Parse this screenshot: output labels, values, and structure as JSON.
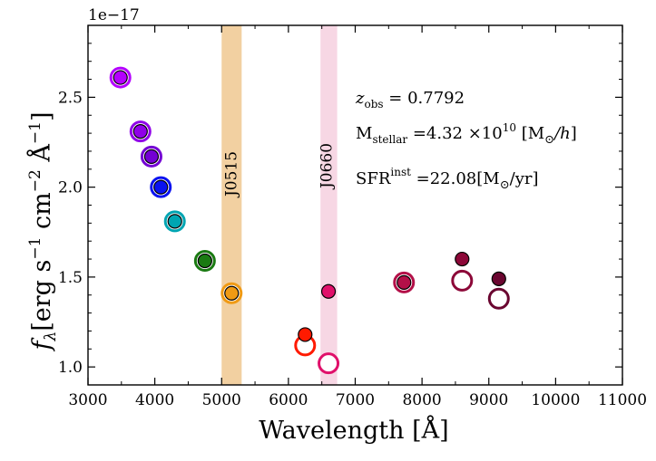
{
  "chart_data": {
    "type": "scatter",
    "title": "",
    "xlabel": "Wavelength  [Å]",
    "ylabel_parts": {
      "f": "f",
      "sub": "λ",
      "units": "[erg  s",
      "s_exp": "−1",
      "cm": "  cm",
      "cm_exp": "−2",
      "ang": "  Å",
      "ang_exp": "−1",
      "close": "]"
    },
    "y_offset_text": "1e−17",
    "xlim": [
      3000,
      11000
    ],
    "ylim": [
      0.9,
      2.9
    ],
    "xticks": [
      3000,
      4000,
      5000,
      6000,
      7000,
      8000,
      9000,
      10000,
      11000
    ],
    "yticks": [
      1.0,
      1.5,
      2.0,
      2.5
    ],
    "ytick_labels": [
      "1.0",
      "1.5",
      "2.0",
      "2.5"
    ],
    "bands": [
      {
        "name": "J0515",
        "x_range": [
          5000,
          5300
        ],
        "color": "#f0c890"
      },
      {
        "name": "J0660",
        "x_range": [
          6480,
          6730
        ],
        "color": "#f6d0df"
      }
    ],
    "series": [
      {
        "name": "observed_filled",
        "points": [
          {
            "x": 3485,
            "y": 2.61,
            "color": "#b400ff"
          },
          {
            "x": 3785,
            "y": 2.31,
            "color": "#9000e8"
          },
          {
            "x": 3950,
            "y": 2.17,
            "color": "#7400d4"
          },
          {
            "x": 4090,
            "y": 2.0,
            "color": "#0a12f0"
          },
          {
            "x": 4300,
            "y": 1.81,
            "color": "#00a5b2"
          },
          {
            "x": 4750,
            "y": 1.59,
            "color": "#1a7a12"
          },
          {
            "x": 5150,
            "y": 1.41,
            "color": "#f09a14"
          },
          {
            "x": 6250,
            "y": 1.18,
            "color": "#ff1a00"
          },
          {
            "x": 6600,
            "y": 1.42,
            "color": "#e0106a"
          },
          {
            "x": 7730,
            "y": 1.47,
            "color": "#b31048"
          },
          {
            "x": 8600,
            "y": 1.6,
            "color": "#8c0838"
          },
          {
            "x": 9150,
            "y": 1.49,
            "color": "#6a0630"
          }
        ]
      },
      {
        "name": "model_open",
        "points": [
          {
            "x": 3485,
            "y": 2.61,
            "color": "#b400ff"
          },
          {
            "x": 3785,
            "y": 2.31,
            "color": "#9000e8"
          },
          {
            "x": 3950,
            "y": 2.17,
            "color": "#7400d4"
          },
          {
            "x": 4090,
            "y": 2.0,
            "color": "#0a12f0"
          },
          {
            "x": 4300,
            "y": 1.81,
            "color": "#00a5b2"
          },
          {
            "x": 4750,
            "y": 1.59,
            "color": "#1a7a12"
          },
          {
            "x": 5150,
            "y": 1.41,
            "color": "#f09a14"
          },
          {
            "x": 6250,
            "y": 1.12,
            "color": "#ff1a00"
          },
          {
            "x": 6600,
            "y": 1.02,
            "color": "#e0106a"
          },
          {
            "x": 7730,
            "y": 1.47,
            "color": "#b31048"
          },
          {
            "x": 8600,
            "y": 1.48,
            "color": "#8c0838"
          },
          {
            "x": 9150,
            "y": 1.38,
            "color": "#6a0630"
          }
        ]
      }
    ],
    "annotations": {
      "z_var": "z",
      "z_sub": "obs",
      "z_val": " = 0.7792",
      "m_main": "M",
      "m_sub": "stellar",
      "m_val": " =4.32 ×10",
      "m_exp": "10",
      "m_unit_open": " [M",
      "m_unit_sun": "⊙",
      "m_unit_h": "/h",
      "m_unit_close": "]",
      "sfr_main": "SFR",
      "sfr_sup": "inst",
      "sfr_val": " =22.08[M",
      "sfr_sun": "⊙",
      "sfr_close": "/yr]"
    }
  }
}
